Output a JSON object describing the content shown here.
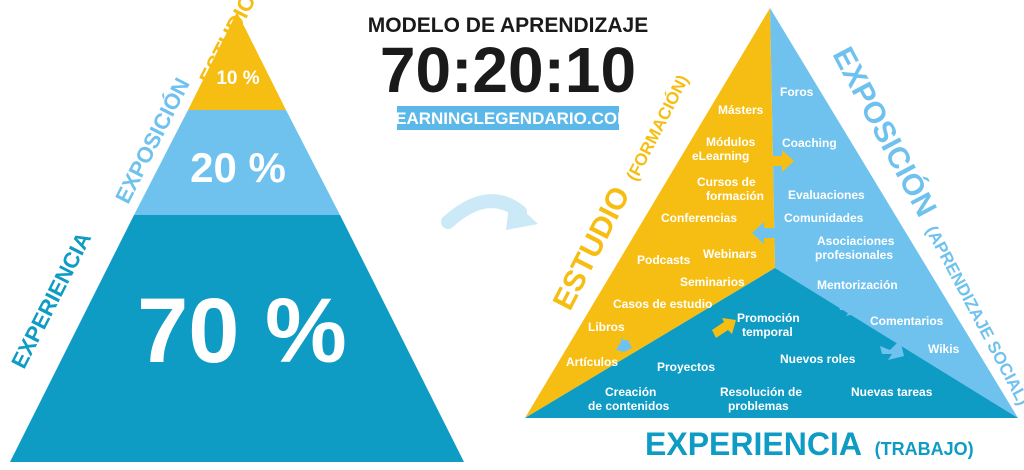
{
  "title": {
    "line1": "MODELO DE APRENDIZAJE",
    "line2": "70:20:10",
    "badge": "LEARNINGLEGENDARIO.COM"
  },
  "left_pyramid": {
    "levels": [
      {
        "side_label": "ESTUDIO",
        "percent": "10 %",
        "color": "#F6BE12"
      },
      {
        "side_label": "EXPOSICIÓN",
        "percent": "20 %",
        "color": "#70C2EE"
      },
      {
        "side_label": "EXPERIENCIA",
        "percent": "70 %",
        "color": "#0E9BC4"
      }
    ]
  },
  "right_pyramid": {
    "colors": {
      "estudio": "#F6BE12",
      "exposicion": "#70C2EE",
      "experiencia": "#0E9BC4"
    },
    "estudio_label": {
      "main": "ESTUDIO",
      "sub": "(FORMACIÓN)"
    },
    "exposicion_label": {
      "main": "EXPOSICIÓN",
      "sub": "(APRENDIZAJE SOCIAL)"
    },
    "experiencia_label": {
      "main": "EXPERIENCIA",
      "sub": "(TRABAJO)"
    },
    "estudio_items": [
      "Másters",
      "Módulos",
      "eLearning",
      "Cursos de",
      "formación",
      "Conferencias",
      "Podcasts",
      "Webinars",
      "Seminarios",
      "Casos de estudio",
      "Libros",
      "Artículos"
    ],
    "exposicion_items": [
      "Foros",
      "Coaching",
      "Evaluaciones",
      "Comunidades",
      "Asociaciones",
      "profesionales",
      "Mentorización",
      "Comentarios",
      "Wikis"
    ],
    "experiencia_items": [
      "Promoción",
      "temporal",
      "Proyectos",
      "Nuevos roles",
      "Creación",
      "de contenidos",
      "Resolución de",
      "problemas",
      "Nuevas tareas"
    ]
  }
}
